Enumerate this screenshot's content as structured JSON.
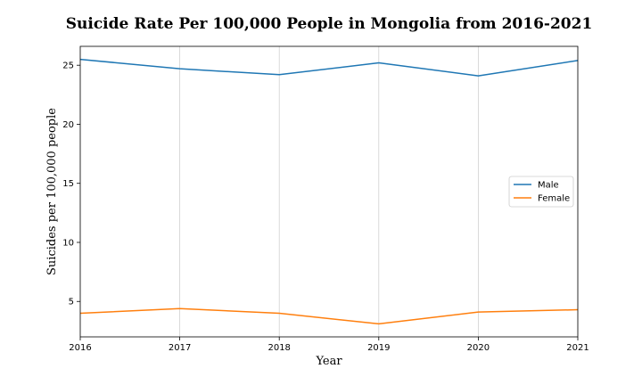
{
  "chart_data": {
    "type": "line",
    "title": "Suicide Rate Per 100,000 People in Mongolia from 2016-2021",
    "xlabel": "Year",
    "ylabel": "Suicides per 100,000 people",
    "x": [
      2016,
      2017,
      2018,
      2019,
      2020,
      2021
    ],
    "xlim": [
      2016,
      2021
    ],
    "ylim": [
      2.0,
      26.6
    ],
    "yticks": [
      5,
      10,
      15,
      20,
      25
    ],
    "grid": "vertical",
    "legend_position": "center-right",
    "series": [
      {
        "name": "Male",
        "color": "#1f77b4",
        "values": [
          25.5,
          24.7,
          24.2,
          25.2,
          24.1,
          25.4
        ]
      },
      {
        "name": "Female",
        "color": "#ff7f0e",
        "values": [
          4.0,
          4.4,
          4.0,
          3.1,
          4.1,
          4.3
        ]
      }
    ]
  }
}
